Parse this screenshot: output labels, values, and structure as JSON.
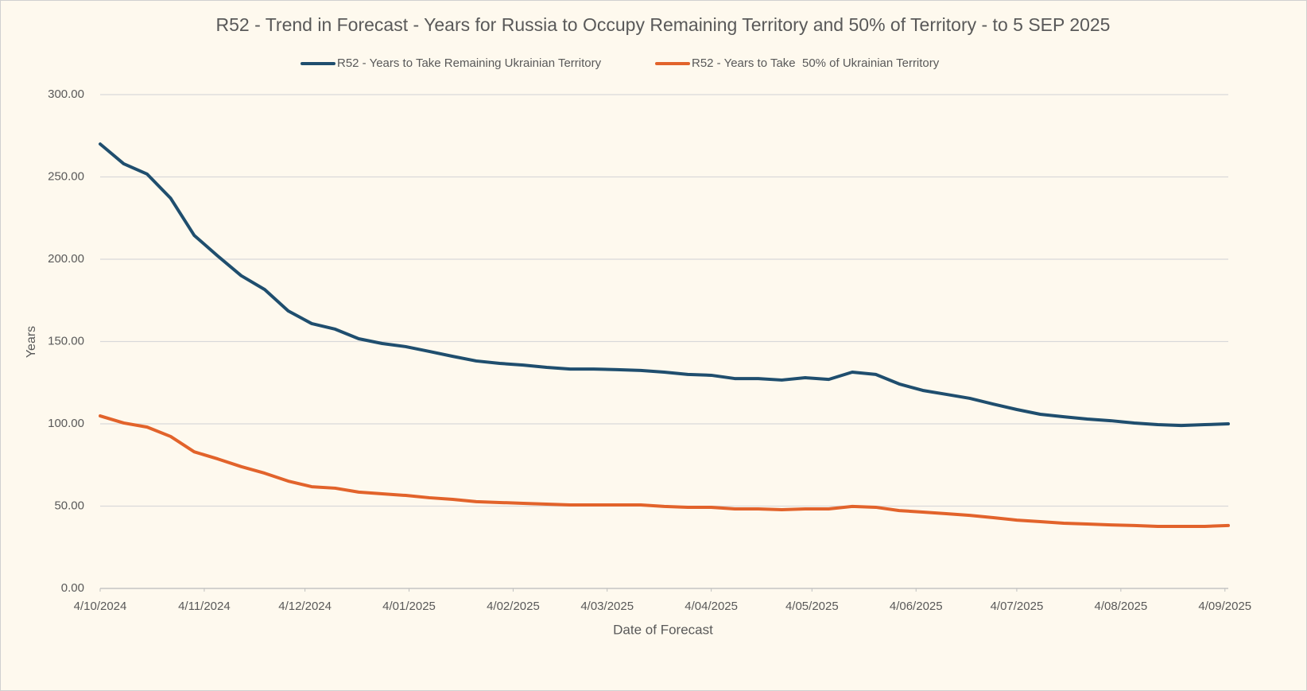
{
  "chart_data": {
    "type": "line",
    "title": "R52 - Trend in Forecast - Years for Russia to Occupy Remaining Territory and 50% of Territory - to 5 SEP 2025",
    "x_label": "Date of Forecast",
    "y_label": "Years",
    "x": [
      "2024-10-04",
      "2024-10-11",
      "2024-10-18",
      "2024-10-25",
      "2024-11-01",
      "2024-11-08",
      "2024-11-15",
      "2024-11-22",
      "2024-11-29",
      "2024-12-06",
      "2024-12-13",
      "2024-12-20",
      "2024-12-27",
      "2025-01-03",
      "2025-01-10",
      "2025-01-17",
      "2025-01-24",
      "2025-01-31",
      "2025-02-07",
      "2025-02-14",
      "2025-02-21",
      "2025-02-28",
      "2025-03-07",
      "2025-03-14",
      "2025-03-21",
      "2025-03-28",
      "2025-04-04",
      "2025-04-11",
      "2025-04-18",
      "2025-04-25",
      "2025-05-02",
      "2025-05-09",
      "2025-05-16",
      "2025-05-23",
      "2025-05-30",
      "2025-06-06",
      "2025-06-13",
      "2025-06-20",
      "2025-06-27",
      "2025-07-04",
      "2025-07-11",
      "2025-07-18",
      "2025-07-25",
      "2025-08-01",
      "2025-08-08",
      "2025-08-15",
      "2025-08-22",
      "2025-08-29",
      "2025-09-05"
    ],
    "series": [
      {
        "name": "R52 - Years to Take Remaining Ukrainian Territory",
        "color": "#1f4e6e",
        "values": [
          270,
          258,
          251.7,
          237,
          214.5,
          202,
          190,
          181.6,
          168.6,
          160.9,
          157.5,
          151.7,
          148.8,
          146.9,
          144,
          141,
          138.2,
          136.7,
          135.7,
          134.3,
          133.3,
          133.3,
          132.9,
          132.4,
          131.4,
          130,
          129.5,
          127.5,
          127.5,
          126.6,
          128,
          127,
          131.4,
          130,
          124.2,
          120.3,
          117.9,
          115.5,
          112,
          108.7,
          105.8,
          104.3,
          102.9,
          101.9,
          100.5,
          99.5,
          99,
          99.5,
          100
        ]
      },
      {
        "name": "R52 - Years to Take  50% of Ukrainian Territory",
        "color": "#e2632b",
        "values": [
          104.8,
          100.5,
          98,
          92.3,
          83,
          78.7,
          74,
          70,
          65.2,
          61.8,
          60.9,
          58.5,
          57.5,
          56.5,
          55.1,
          54.1,
          52.7,
          52.2,
          51.7,
          51.2,
          50.7,
          50.7,
          50.7,
          50.7,
          49.8,
          49.3,
          49.3,
          48.3,
          48.3,
          47.8,
          48.3,
          48.3,
          49.8,
          49.3,
          47.3,
          46.4,
          45.4,
          44.4,
          43,
          41.5,
          40.6,
          39.6,
          39.1,
          38.6,
          38.2,
          37.7,
          37.7,
          37.7,
          38.2
        ]
      }
    ],
    "xlim": [
      "2024-10-04",
      "2025-09-05"
    ],
    "xticks": [
      {
        "value": "2024-10-04",
        "label": "4/10/2024"
      },
      {
        "value": "2024-11-04",
        "label": "4/11/2024"
      },
      {
        "value": "2024-12-04",
        "label": "4/12/2024"
      },
      {
        "value": "2025-01-04",
        "label": "4/01/2025"
      },
      {
        "value": "2025-02-04",
        "label": "4/02/2025"
      },
      {
        "value": "2025-03-04",
        "label": "4/03/2025"
      },
      {
        "value": "2025-04-04",
        "label": "4/04/2025"
      },
      {
        "value": "2025-05-04",
        "label": "4/05/2025"
      },
      {
        "value": "2025-06-04",
        "label": "4/06/2025"
      },
      {
        "value": "2025-07-04",
        "label": "4/07/2025"
      },
      {
        "value": "2025-08-04",
        "label": "4/08/2025"
      },
      {
        "value": "2025-09-04",
        "label": "4/09/2025"
      }
    ],
    "ylim": [
      0,
      300
    ],
    "yticks": [
      {
        "value": 0,
        "label": "0.00"
      },
      {
        "value": 50,
        "label": "50.00"
      },
      {
        "value": 100,
        "label": "100.00"
      },
      {
        "value": 150,
        "label": "150.00"
      },
      {
        "value": 200,
        "label": "200.00"
      },
      {
        "value": 250,
        "label": "250.00"
      },
      {
        "value": 300,
        "label": "300.00"
      }
    ],
    "grid": true,
    "legend": "top"
  }
}
